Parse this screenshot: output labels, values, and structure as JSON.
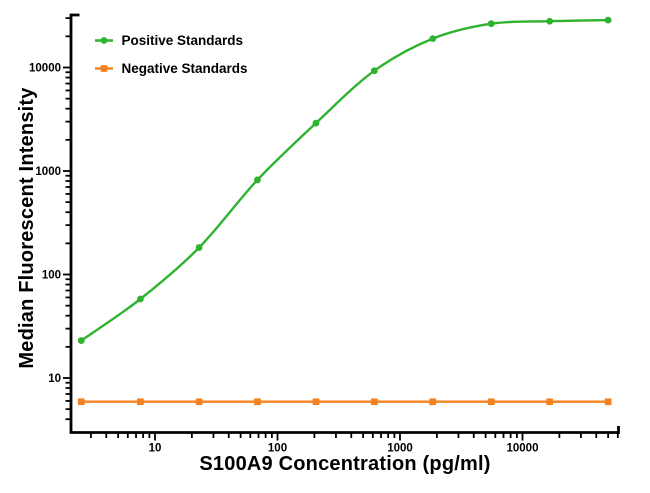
{
  "chart_data": {
    "type": "line",
    "title": "",
    "xlabel": "S100A9 Concentration (pg/ml)",
    "ylabel": "Median Fluorescent Intensity",
    "x_scale": "log",
    "y_scale": "log",
    "x_range": [
      2.2,
      60000
    ],
    "y_range": [
      3,
      32000
    ],
    "x_major_ticks": [
      10,
      100,
      1000,
      10000
    ],
    "x_tick_labels": [
      "10",
      "100",
      "1000",
      "10000"
    ],
    "y_major_ticks": [
      10,
      100,
      1000,
      10000
    ],
    "y_tick_labels": [
      "10",
      "100",
      "1000",
      "10000"
    ],
    "grid": false,
    "legend_position": "upper-left-inside",
    "x": [
      2.5,
      7.6,
      22.9,
      68.6,
      206,
      617,
      1852,
      5556,
      16667,
      50000
    ],
    "series": [
      {
        "name": "Positive Standards",
        "color": "#2db32d",
        "marker": "circle",
        "line": "smooth",
        "values": [
          23,
          58,
          182,
          820,
          2900,
          9300,
          19000,
          26500,
          28000,
          28700
        ]
      },
      {
        "name": "Negative Standards",
        "color": "#f58220",
        "marker": "square",
        "line": "straight",
        "values": [
          5.9,
          5.9,
          5.9,
          5.9,
          5.9,
          5.9,
          5.9,
          5.9,
          5.9,
          5.9
        ]
      }
    ],
    "axis_color": "#000000",
    "background": "#ffffff"
  }
}
